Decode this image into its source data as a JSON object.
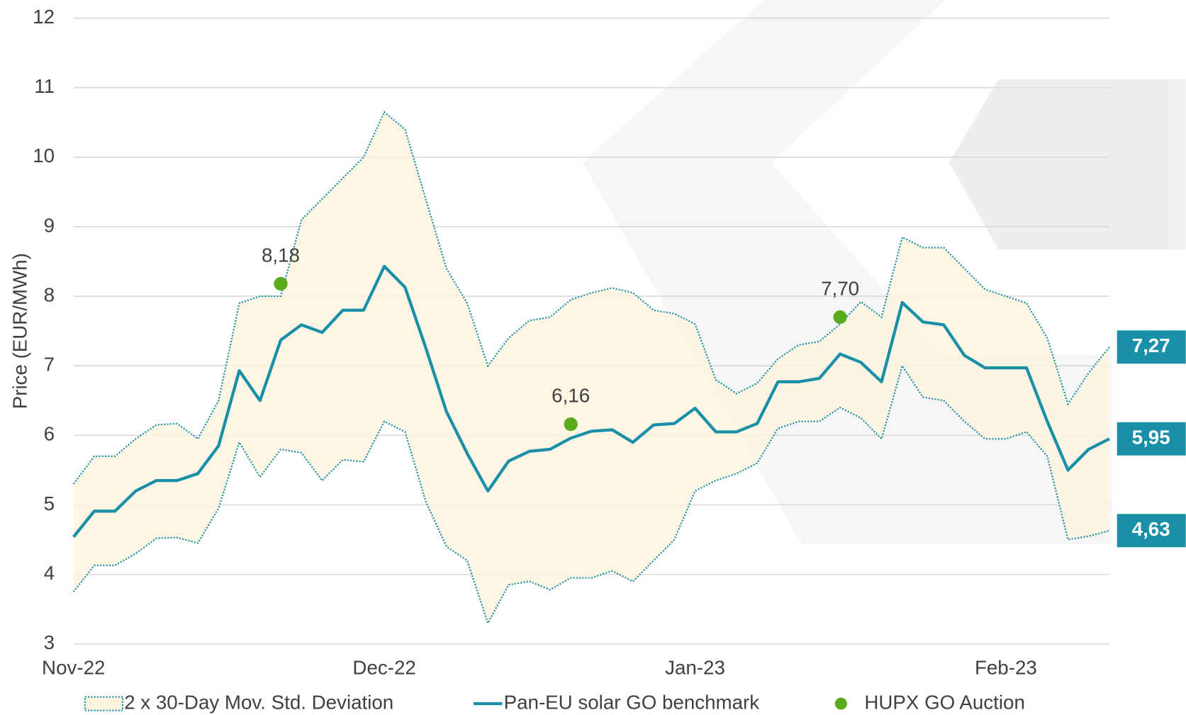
{
  "chart_data": {
    "type": "line",
    "y_label": "Price (EUR/MWh)",
    "ylim": [
      3,
      12
    ],
    "yticks": [
      3,
      4,
      5,
      6,
      7,
      8,
      9,
      10,
      11,
      12
    ],
    "grid": true,
    "legend": "bottom",
    "categories": [
      "Nov-22",
      null,
      null,
      null,
      null,
      null,
      null,
      null,
      null,
      null,
      null,
      null,
      null,
      null,
      null,
      "Dec-22",
      null,
      null,
      null,
      null,
      null,
      null,
      null,
      null,
      null,
      null,
      null,
      null,
      null,
      null,
      "Jan-23",
      null,
      null,
      null,
      null,
      null,
      null,
      null,
      null,
      null,
      null,
      null,
      null,
      null,
      null,
      "Feb-23",
      null,
      null,
      null,
      null,
      null
    ],
    "band": {
      "name": "2 x 30-Day Mov. Std. Deviation",
      "color": "#1a8fa8",
      "fill": "#fdf4df",
      "upper": [
        5.3,
        5.7,
        5.7,
        5.95,
        6.15,
        6.17,
        5.95,
        6.5,
        7.9,
        8.0,
        8.0,
        9.1,
        9.4,
        9.7,
        10.0,
        10.65,
        10.4,
        9.4,
        8.4,
        7.9,
        7.0,
        7.4,
        7.65,
        7.7,
        7.95,
        8.05,
        8.12,
        8.05,
        7.8,
        7.75,
        7.6,
        6.8,
        6.6,
        6.75,
        7.1,
        7.3,
        7.35,
        7.6,
        7.92,
        7.7,
        8.85,
        8.7,
        8.7,
        8.4,
        8.1,
        8.0,
        7.9,
        7.4,
        6.45,
        6.9,
        7.27
      ],
      "upper_labels": [
        null,
        null,
        null,
        null,
        null,
        null,
        null,
        null,
        null,
        null,
        null,
        null,
        null,
        null,
        null,
        null,
        null,
        null,
        null,
        null,
        null,
        null,
        null,
        null,
        null,
        null,
        null,
        null,
        null,
        null,
        null,
        null,
        null,
        null,
        null,
        null,
        null,
        null,
        null,
        null,
        null,
        null,
        null,
        null,
        null,
        null,
        null,
        null,
        null,
        null,
        "7,27"
      ],
      "lower": [
        3.75,
        4.13,
        4.13,
        4.3,
        4.52,
        4.53,
        4.45,
        4.95,
        5.9,
        5.4,
        5.8,
        5.75,
        5.35,
        5.65,
        5.62,
        6.2,
        6.05,
        5.05,
        4.4,
        4.2,
        3.3,
        3.85,
        3.9,
        3.78,
        3.95,
        3.95,
        4.05,
        3.9,
        4.2,
        4.5,
        5.2,
        5.35,
        5.45,
        5.6,
        6.1,
        6.2,
        6.2,
        6.4,
        6.25,
        5.95,
        7.0,
        6.55,
        6.5,
        6.2,
        5.95,
        5.95,
        6.05,
        5.7,
        4.5,
        4.55,
        4.63
      ],
      "lower_labels": [
        null,
        null,
        null,
        null,
        null,
        null,
        null,
        null,
        null,
        null,
        null,
        null,
        null,
        null,
        null,
        null,
        null,
        null,
        null,
        null,
        null,
        null,
        null,
        null,
        null,
        null,
        null,
        null,
        null,
        null,
        null,
        null,
        null,
        null,
        null,
        null,
        null,
        null,
        null,
        null,
        null,
        null,
        null,
        null,
        null,
        null,
        null,
        null,
        null,
        null,
        "4,63"
      ]
    },
    "series": [
      {
        "name": "Pan-EU solar GO benchmark",
        "color": "#1a8fa8",
        "type": "line",
        "values": [
          4.54,
          4.91,
          4.91,
          5.2,
          5.35,
          5.35,
          5.45,
          5.85,
          6.93,
          6.5,
          7.37,
          7.59,
          7.48,
          7.8,
          7.8,
          8.43,
          8.13,
          7.26,
          6.34,
          5.74,
          5.2,
          5.63,
          5.77,
          5.8,
          5.96,
          6.06,
          6.08,
          5.9,
          6.15,
          6.17,
          6.39,
          6.05,
          6.05,
          6.17,
          6.77,
          6.77,
          6.82,
          7.17,
          7.05,
          6.77,
          7.91,
          7.63,
          7.59,
          7.15,
          6.97,
          6.97,
          6.97,
          6.2,
          5.5,
          5.8,
          5.95
        ],
        "value_labels": [
          null,
          null,
          null,
          null,
          null,
          null,
          null,
          null,
          null,
          null,
          null,
          null,
          null,
          null,
          null,
          null,
          null,
          null,
          null,
          null,
          null,
          null,
          null,
          null,
          null,
          null,
          null,
          null,
          null,
          null,
          null,
          null,
          null,
          null,
          null,
          null,
          null,
          null,
          null,
          null,
          null,
          null,
          null,
          null,
          null,
          null,
          null,
          null,
          null,
          null,
          "5,95"
        ]
      },
      {
        "name": "HUPX GO Auction",
        "color": "#5aaa1e",
        "type": "scatter",
        "values": [
          null,
          null,
          null,
          null,
          null,
          null,
          null,
          null,
          null,
          null,
          8.18,
          null,
          null,
          null,
          null,
          null,
          null,
          null,
          null,
          null,
          null,
          null,
          null,
          null,
          6.16,
          null,
          null,
          null,
          null,
          null,
          null,
          null,
          null,
          null,
          null,
          null,
          null,
          7.7,
          null,
          null,
          null,
          null,
          null,
          null,
          null,
          null,
          null,
          null,
          null,
          null,
          null
        ],
        "value_labels": [
          null,
          null,
          null,
          null,
          null,
          null,
          null,
          null,
          null,
          null,
          "8,18",
          null,
          null,
          null,
          null,
          null,
          null,
          null,
          null,
          null,
          null,
          null,
          null,
          null,
          "6,16",
          null,
          null,
          null,
          null,
          null,
          null,
          null,
          null,
          null,
          null,
          null,
          null,
          "7,70",
          null,
          null,
          null,
          null,
          null,
          null,
          null,
          null,
          null,
          null,
          null,
          null,
          null
        ]
      }
    ]
  }
}
